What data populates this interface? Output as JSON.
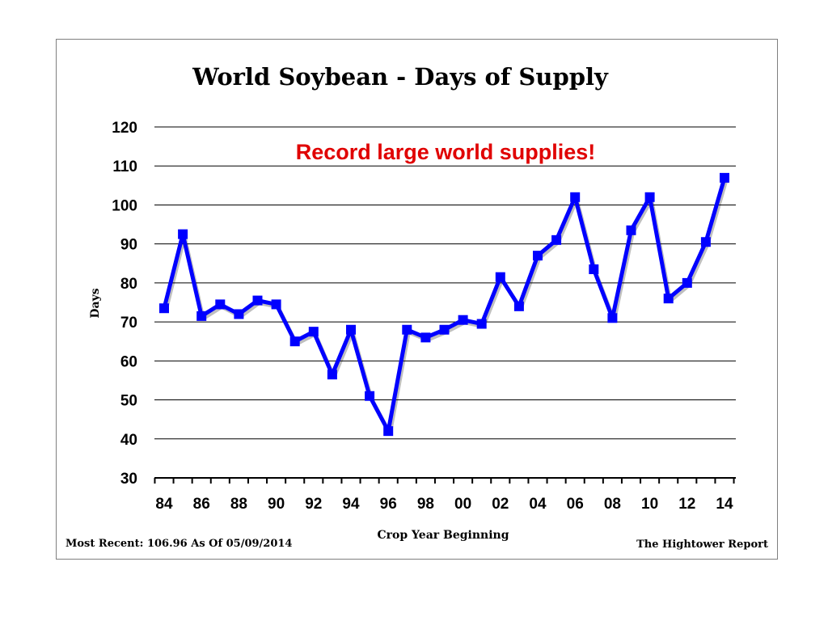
{
  "chart_data": {
    "type": "line",
    "title": "World Soybean - Days of Supply",
    "annotation": "Record large world supplies!",
    "ylabel": "Days",
    "xlabel": "Crop Year Beginning",
    "ylim": [
      30,
      120
    ],
    "yticks": [
      "30",
      "40",
      "50",
      "60",
      "70",
      "80",
      "90",
      "100",
      "110",
      "120"
    ],
    "grid": true,
    "x": [
      "84",
      "85",
      "86",
      "87",
      "88",
      "89",
      "90",
      "91",
      "92",
      "93",
      "94",
      "95",
      "96",
      "97",
      "98",
      "99",
      "00",
      "01",
      "02",
      "03",
      "04",
      "05",
      "06",
      "07",
      "08",
      "09",
      "10",
      "11",
      "12",
      "13",
      "14"
    ],
    "xtick_labels": [
      "84",
      "86",
      "88",
      "90",
      "92",
      "94",
      "96",
      "98",
      "00",
      "02",
      "04",
      "06",
      "08",
      "10",
      "12",
      "14"
    ],
    "series": [
      {
        "color": "#0000ff",
        "marker": "square",
        "values": [
          73.5,
          92.5,
          71.5,
          74.5,
          72,
          75.5,
          74.5,
          65,
          67.5,
          56.5,
          68,
          51,
          42,
          68,
          66,
          68,
          70.5,
          69.5,
          81.5,
          74,
          87,
          91,
          102,
          83.5,
          71,
          93.5,
          102,
          76,
          80,
          90.5,
          106.96
        ]
      }
    ],
    "footer_left": "Most Recent: 106.96 As Of 05/09/2014",
    "footer_right": "The Hightower Report"
  }
}
